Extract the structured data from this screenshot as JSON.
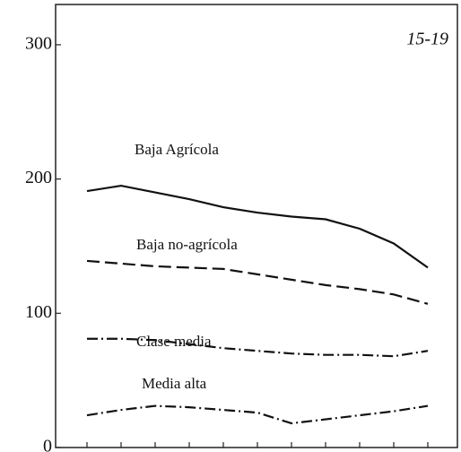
{
  "chart_data": {
    "type": "line",
    "annotation": "15-19",
    "categories": [
      null,
      null,
      null,
      null,
      null,
      null,
      null,
      null,
      null,
      null,
      null
    ],
    "series": [
      {
        "name": "Baja Agrícola",
        "color": "#111111",
        "line_style": "solid",
        "values": [
          191,
          195,
          190,
          185,
          179,
          175,
          172,
          170,
          163,
          152,
          134
        ]
      },
      {
        "name": "Baja no-agrícola",
        "color": "#111111",
        "line_style": "dashed",
        "values": [
          139,
          137,
          135,
          134,
          133,
          129,
          125,
          121,
          118,
          114,
          107
        ]
      },
      {
        "name": "Clase media",
        "color": "#111111",
        "line_style": "dashdot",
        "values": [
          81,
          81,
          80,
          77,
          74,
          72,
          70,
          69,
          69,
          68,
          72
        ]
      },
      {
        "name": "Media alta",
        "color": "#111111",
        "line_style": "dashdot",
        "values": [
          24,
          28,
          31,
          30,
          28,
          26,
          18,
          21,
          24,
          27,
          31
        ]
      }
    ],
    "ylim": [
      0,
      330
    ],
    "yticks": [
      0,
      100,
      200,
      300
    ],
    "grid": false
  }
}
